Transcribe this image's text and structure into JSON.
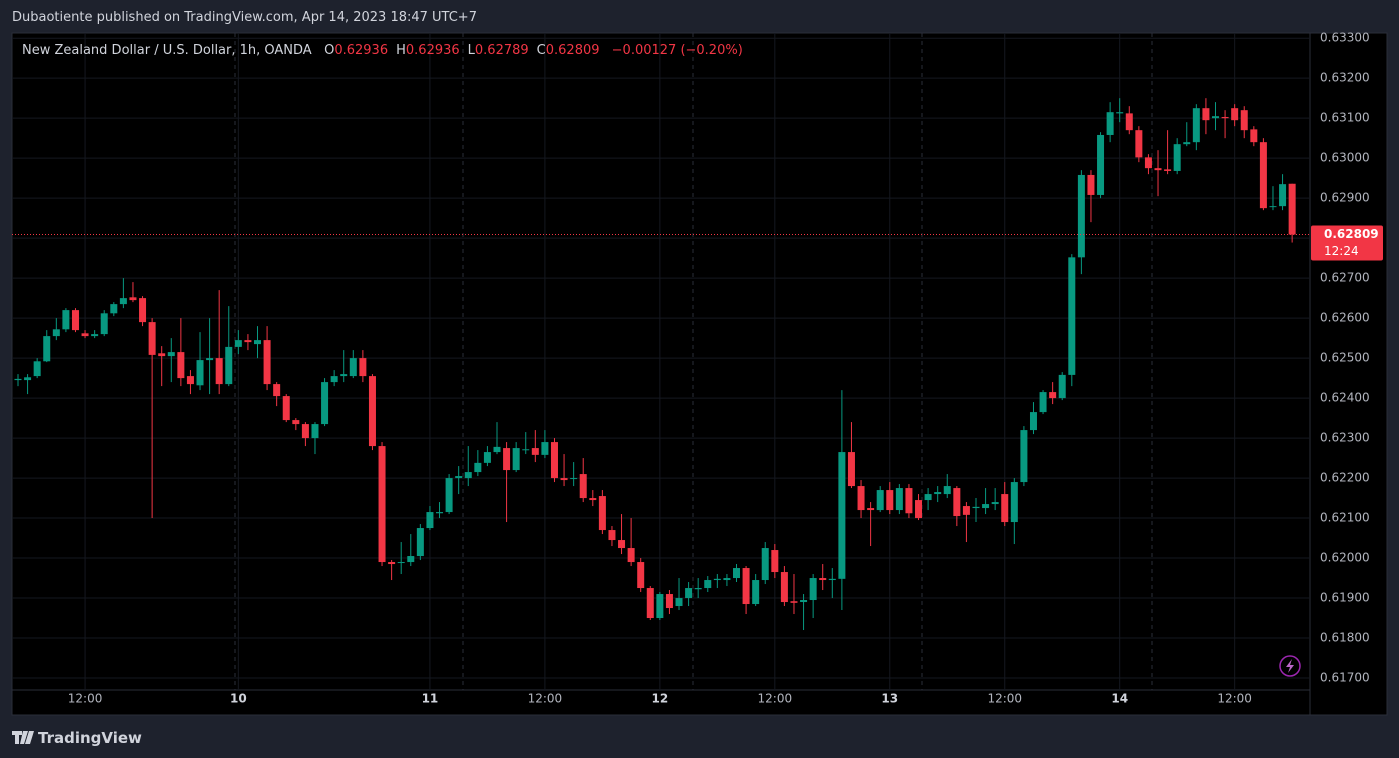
{
  "header": {
    "publisher": "Dubaotiente published on TradingView.com, Apr 14, 2023 18:47 UTC+7"
  },
  "chart_data": {
    "type": "candlestick",
    "legend": {
      "symbol": "New Zealand Dollar / U.S. Dollar, 1h, OANDA",
      "fields": [
        [
          "O",
          "0.62936"
        ],
        [
          "H",
          "0.62936"
        ],
        [
          "L",
          "0.62789"
        ],
        [
          "C",
          "0.62809"
        ]
      ],
      "change": "−0.00127 (−0.20%)"
    },
    "last_price_label": "0.62809",
    "countdown": "12:24",
    "up_color": "#089981",
    "down_color": "#f23645",
    "grid": true,
    "ylim": [
      0.6167,
      0.63313
    ],
    "yticks": [
      {
        "value": 0.617,
        "label": "0.61700"
      },
      {
        "value": 0.618,
        "label": "0.61800"
      },
      {
        "value": 0.619,
        "label": "0.61900"
      },
      {
        "value": 0.62,
        "label": "0.62000"
      },
      {
        "value": 0.621,
        "label": "0.62100"
      },
      {
        "value": 0.622,
        "label": "0.62200"
      },
      {
        "value": 0.623,
        "label": "0.62300"
      },
      {
        "value": 0.624,
        "label": "0.62400"
      },
      {
        "value": 0.625,
        "label": "0.62500"
      },
      {
        "value": 0.626,
        "label": "0.62600"
      },
      {
        "value": 0.627,
        "label": "0.62700"
      },
      {
        "value": 0.628,
        "label": "0.62800"
      },
      {
        "value": 0.629,
        "label": "0.62900"
      },
      {
        "value": 0.63,
        "label": "0.63000"
      },
      {
        "value": 0.631,
        "label": "0.63100"
      },
      {
        "value": 0.632,
        "label": "0.63200"
      },
      {
        "value": 0.633,
        "label": "0.63300"
      }
    ],
    "categories": [
      null,
      null,
      null,
      null,
      null,
      null,
      null,
      "12:00",
      null,
      null,
      null,
      null,
      null,
      null,
      null,
      null,
      null,
      null,
      null,
      null,
      null,
      null,
      null,
      "10",
      null,
      null,
      null,
      null,
      null,
      null,
      null,
      null,
      null,
      null,
      null,
      null,
      null,
      null,
      null,
      null,
      null,
      null,
      null,
      "11",
      null,
      null,
      null,
      null,
      null,
      null,
      null,
      null,
      null,
      null,
      null,
      "12:00",
      null,
      null,
      null,
      null,
      null,
      null,
      null,
      null,
      null,
      null,
      null,
      "12",
      null,
      null,
      null,
      null,
      null,
      null,
      null,
      null,
      null,
      null,
      null,
      "12:00",
      null,
      null,
      null,
      null,
      null,
      null,
      null,
      null,
      null,
      null,
      null,
      "13",
      null,
      null,
      null,
      null,
      null,
      null,
      null,
      null,
      null,
      null,
      null,
      "12:00",
      null,
      null,
      null,
      null,
      null,
      null,
      null,
      null,
      null,
      null,
      null,
      "14",
      null,
      null,
      null,
      null,
      null,
      null,
      null,
      null,
      null,
      null,
      null,
      "12:00",
      null,
      null,
      null,
      null,
      null,
      null
    ],
    "open": [
      0.62445,
      0.62445,
      0.62455,
      0.62492,
      0.62555,
      0.62572,
      0.6262,
      0.62562,
      0.62555,
      0.6256,
      0.62612,
      0.62635,
      0.62652,
      0.6265,
      0.6259,
      0.62512,
      0.62505,
      0.62515,
      0.62455,
      0.62432,
      0.62495,
      0.625,
      0.62435,
      0.62528,
      0.62545,
      0.62535,
      0.62545,
      0.62435,
      0.62405,
      0.62345,
      0.62335,
      0.623,
      0.62335,
      0.6244,
      0.62455,
      0.62455,
      0.625,
      0.62455,
      0.6228,
      0.6199,
      0.61988,
      0.6199,
      0.62005,
      0.62075,
      0.62112,
      0.62115,
      0.622,
      0.622,
      0.62215,
      0.62238,
      0.62265,
      0.62275,
      0.6222,
      0.6227,
      0.62275,
      0.62258,
      0.6229,
      0.622,
      0.62198,
      0.6221,
      0.6215,
      0.62155,
      0.6207,
      0.62045,
      0.62025,
      0.6199,
      0.61925,
      0.6185,
      0.6191,
      0.6188,
      0.619,
      0.61922,
      0.61925,
      0.61945,
      0.61945,
      0.6195,
      0.61975,
      0.61885,
      0.61945,
      0.6202,
      0.61965,
      0.61892,
      0.6189,
      0.61895,
      0.6195,
      0.61945,
      0.61948,
      0.62265,
      0.6218,
      0.62125,
      0.6212,
      0.6217,
      0.6212,
      0.62175,
      0.62145,
      0.62145,
      0.6216,
      0.6216,
      0.62175,
      0.6213,
      0.62125,
      0.62125,
      0.62135,
      0.6216,
      0.6209,
      0.6219,
      0.6232,
      0.62365,
      0.62415,
      0.624,
      0.62458,
      0.62752,
      0.62958,
      0.62908,
      0.63058,
      0.63112,
      0.63112,
      0.6307,
      0.63002,
      0.62975,
      0.62972,
      0.62968,
      0.63035,
      0.6304,
      0.63125,
      0.631,
      0.63103,
      0.63125,
      0.6312,
      0.63072,
      0.6304,
      0.62878,
      0.6288,
      0.62936
    ],
    "high": [
      0.6246,
      0.6246,
      0.625,
      0.6257,
      0.626,
      0.62625,
      0.62625,
      0.6257,
      0.6257,
      0.6262,
      0.6264,
      0.627,
      0.6269,
      0.62655,
      0.626,
      0.6253,
      0.6255,
      0.626,
      0.6247,
      0.62565,
      0.626,
      0.6267,
      0.6263,
      0.6257,
      0.6256,
      0.6258,
      0.6258,
      0.6244,
      0.6241,
      0.6235,
      0.6234,
      0.6234,
      0.6245,
      0.6247,
      0.6252,
      0.6252,
      0.6252,
      0.6246,
      0.6229,
      0.61995,
      0.6204,
      0.6206,
      0.62085,
      0.6213,
      0.6214,
      0.6221,
      0.6223,
      0.6228,
      0.6227,
      0.6228,
      0.6234,
      0.6229,
      0.6229,
      0.62315,
      0.6232,
      0.6232,
      0.623,
      0.6226,
      0.6224,
      0.6225,
      0.6217,
      0.6217,
      0.6208,
      0.6211,
      0.621,
      0.62,
      0.6193,
      0.61915,
      0.6192,
      0.6195,
      0.6194,
      0.6195,
      0.61955,
      0.6196,
      0.6196,
      0.61985,
      0.6198,
      0.6196,
      0.6204,
      0.62035,
      0.6198,
      0.6196,
      0.6191,
      0.6196,
      0.61985,
      0.61975,
      0.6242,
      0.6234,
      0.62195,
      0.6214,
      0.6218,
      0.6219,
      0.62185,
      0.62185,
      0.6216,
      0.62175,
      0.6218,
      0.6221,
      0.6218,
      0.6214,
      0.6215,
      0.62175,
      0.62175,
      0.6219,
      0.622,
      0.6233,
      0.6239,
      0.6242,
      0.6244,
      0.62465,
      0.6276,
      0.6297,
      0.6297,
      0.63065,
      0.6314,
      0.6315,
      0.6313,
      0.6308,
      0.6301,
      0.6302,
      0.6307,
      0.6305,
      0.6309,
      0.63135,
      0.6315,
      0.6314,
      0.6312,
      0.63135,
      0.6313,
      0.6308,
      0.6305,
      0.6293,
      0.6296,
      0.62936
    ],
    "low": [
      0.6243,
      0.6241,
      0.6245,
      0.6249,
      0.62545,
      0.62565,
      0.62565,
      0.6255,
      0.6255,
      0.62555,
      0.62605,
      0.62625,
      0.6264,
      0.6258,
      0.621,
      0.6243,
      0.6244,
      0.6243,
      0.6241,
      0.6242,
      0.6241,
      0.6241,
      0.6243,
      0.6251,
      0.6252,
      0.625,
      0.6242,
      0.6238,
      0.6234,
      0.6232,
      0.6228,
      0.6226,
      0.6233,
      0.6243,
      0.6244,
      0.6245,
      0.6244,
      0.6227,
      0.6198,
      0.61945,
      0.6196,
      0.6198,
      0.61995,
      0.6207,
      0.621,
      0.6211,
      0.6216,
      0.6218,
      0.62205,
      0.6223,
      0.6226,
      0.6209,
      0.62215,
      0.6226,
      0.6224,
      0.6225,
      0.6219,
      0.6218,
      0.6218,
      0.6214,
      0.6213,
      0.6206,
      0.6203,
      0.6201,
      0.6198,
      0.61915,
      0.61845,
      0.61845,
      0.6186,
      0.6187,
      0.6188,
      0.619,
      0.61915,
      0.61925,
      0.6193,
      0.6194,
      0.6186,
      0.6188,
      0.61935,
      0.6195,
      0.6188,
      0.6186,
      0.6182,
      0.6185,
      0.6192,
      0.619,
      0.6187,
      0.62175,
      0.621,
      0.6203,
      0.62115,
      0.6211,
      0.6211,
      0.621,
      0.62095,
      0.6212,
      0.6214,
      0.6215,
      0.6208,
      0.6204,
      0.6209,
      0.6211,
      0.6212,
      0.6208,
      0.62035,
      0.6218,
      0.6231,
      0.6236,
      0.62385,
      0.62395,
      0.6243,
      0.6271,
      0.6284,
      0.629,
      0.6304,
      0.6309,
      0.6306,
      0.6299,
      0.6296,
      0.62905,
      0.6296,
      0.6296,
      0.6303,
      0.6302,
      0.6306,
      0.6307,
      0.6305,
      0.6308,
      0.6305,
      0.6303,
      0.6287,
      0.6287,
      0.6287,
      0.62789
    ],
    "close": [
      0.62448,
      0.62452,
      0.62492,
      0.62555,
      0.62572,
      0.6262,
      0.6257,
      0.62555,
      0.6256,
      0.62612,
      0.62635,
      0.6265,
      0.62645,
      0.6259,
      0.62508,
      0.62505,
      0.62515,
      0.6245,
      0.62435,
      0.62495,
      0.625,
      0.62435,
      0.62528,
      0.62545,
      0.6254,
      0.62545,
      0.62435,
      0.62405,
      0.62345,
      0.62335,
      0.623,
      0.62335,
      0.6244,
      0.62455,
      0.6246,
      0.625,
      0.62455,
      0.6228,
      0.6199,
      0.61985,
      0.6199,
      0.62005,
      0.62075,
      0.62115,
      0.62115,
      0.622,
      0.62205,
      0.62215,
      0.62238,
      0.62265,
      0.62278,
      0.6222,
      0.62275,
      0.62272,
      0.62258,
      0.6229,
      0.622,
      0.62195,
      0.622,
      0.6215,
      0.62145,
      0.6207,
      0.62045,
      0.62025,
      0.6199,
      0.61925,
      0.6185,
      0.6191,
      0.61875,
      0.619,
      0.61925,
      0.61925,
      0.61945,
      0.61948,
      0.6195,
      0.61975,
      0.61885,
      0.61945,
      0.62025,
      0.61965,
      0.6189,
      0.61888,
      0.61895,
      0.6195,
      0.61945,
      0.61948,
      0.62265,
      0.6218,
      0.6212,
      0.6212,
      0.6217,
      0.6212,
      0.62175,
      0.62112,
      0.621,
      0.6216,
      0.62165,
      0.6218,
      0.62105,
      0.62108,
      0.62128,
      0.62135,
      0.6214,
      0.6209,
      0.6219,
      0.6232,
      0.62365,
      0.62415,
      0.624,
      0.62458,
      0.62752,
      0.62958,
      0.62908,
      0.63058,
      0.63115,
      0.63115,
      0.6307,
      0.63002,
      0.62975,
      0.6297,
      0.62968,
      0.63035,
      0.6304,
      0.63125,
      0.63095,
      0.63105,
      0.631,
      0.63095,
      0.6307,
      0.6304,
      0.62875,
      0.6288,
      0.62935,
      0.62809
    ]
  },
  "footer": {
    "brand": "TradingView"
  }
}
